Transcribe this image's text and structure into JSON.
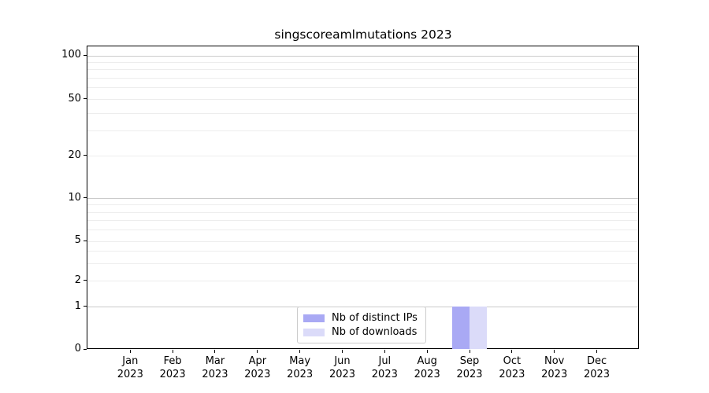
{
  "title": "singscoreamlmutations 2023",
  "legend": {
    "items": [
      {
        "label": "Nb of distinct IPs",
        "color": "#a9a9f4"
      },
      {
        "label": "Nb of downloads",
        "color": "#dbdbf9"
      }
    ]
  },
  "chart_data": {
    "type": "bar",
    "title": "singscoreamlmutations 2023",
    "categories": [
      "Jan 2023",
      "Feb 2023",
      "Mar 2023",
      "Apr 2023",
      "May 2023",
      "Jun 2023",
      "Jul 2023",
      "Aug 2023",
      "Sep 2023",
      "Oct 2023",
      "Nov 2023",
      "Dec 2023"
    ],
    "series": [
      {
        "name": "Nb of distinct IPs",
        "color": "#a9a9f4",
        "values": [
          0,
          0,
          0,
          0,
          0,
          0,
          0,
          0,
          1,
          0,
          0,
          0
        ]
      },
      {
        "name": "Nb of downloads",
        "color": "#dbdbf9",
        "values": [
          0,
          0,
          0,
          0,
          0,
          0,
          0,
          0,
          1,
          0,
          0,
          0
        ]
      }
    ],
    "xlabel": "",
    "ylabel": "",
    "y_axis": {
      "scale": "symlog-like (linear below 1, log-like above)",
      "ticks_labeled": [
        0,
        1,
        2,
        5,
        10,
        20,
        50,
        100
      ],
      "ticks_minor": [
        3,
        4,
        6,
        7,
        8,
        9,
        30,
        40,
        60,
        70,
        80,
        90
      ],
      "ylim": [
        0,
        116
      ]
    },
    "grid": "horizontal, light gray, decades darker",
    "legend_position": "lower center"
  }
}
